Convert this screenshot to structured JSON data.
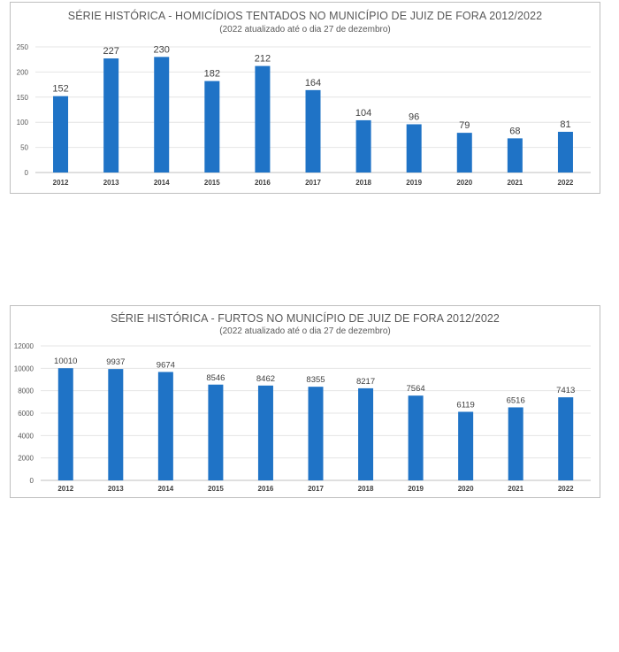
{
  "chart_data": [
    {
      "type": "bar",
      "title": "SÉRIE HISTÓRICA - HOMICÍDIOS TENTADOS NO MUNICÍPIO DE JUIZ DE FORA 2012/2022",
      "subtitle": "(2022 atualizado até o dia 27 de dezembro)",
      "categories": [
        "2012",
        "2013",
        "2014",
        "2015",
        "2016",
        "2017",
        "2018",
        "2019",
        "2020",
        "2021",
        "2022"
      ],
      "values": [
        152,
        227,
        230,
        182,
        212,
        164,
        104,
        96,
        79,
        68,
        81
      ],
      "ylim": [
        0,
        250
      ],
      "yticks": [
        0,
        50,
        100,
        150,
        200,
        250
      ],
      "grid": true,
      "legend": "none",
      "bar_color": "#1f73c6"
    },
    {
      "type": "bar",
      "title": "SÉRIE HISTÓRICA - FURTOS NO MUNICÍPIO DE JUIZ DE FORA 2012/2022",
      "subtitle": "(2022 atualizado até o dia 27 de dezembro)",
      "categories": [
        "2012",
        "2013",
        "2014",
        "2015",
        "2016",
        "2017",
        "2018",
        "2019",
        "2020",
        "2021",
        "2022"
      ],
      "values": [
        10010,
        9937,
        9674,
        8546,
        8462,
        8355,
        8217,
        7564,
        6119,
        6516,
        7413
      ],
      "ylim": [
        0,
        12000
      ],
      "yticks": [
        0,
        2000,
        4000,
        6000,
        8000,
        10000,
        12000
      ],
      "grid": true,
      "legend": "none",
      "bar_color": "#1f73c6"
    }
  ]
}
